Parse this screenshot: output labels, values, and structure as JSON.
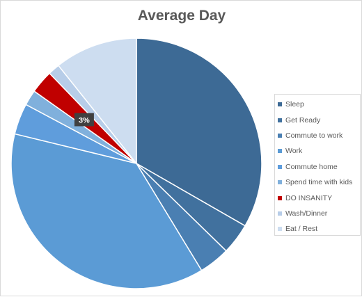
{
  "chart_data": {
    "type": "pie",
    "title": "Average Day",
    "categories": [
      "Sleep",
      "Get Ready",
      "Commute to work",
      "Work",
      "Commute home",
      "Spend time with kids",
      "DO INSANITY",
      "Wash/Dinner",
      "Eat / Rest"
    ],
    "values": [
      33.3,
      4,
      4,
      37.5,
      4,
      2,
      3,
      1.5,
      10.7
    ],
    "colors": [
      "#3d6a95",
      "#41719e",
      "#4a7fb2",
      "#5b9bd5",
      "#5f9ddc",
      "#80b0dc",
      "#c00000",
      "#b7cde8",
      "#cdddf0"
    ],
    "data_labels": [
      {
        "series_index": 6,
        "text": "3%"
      }
    ],
    "legend": {
      "position": "right"
    },
    "start_angle_deg": 0,
    "direction": "clockwise"
  }
}
